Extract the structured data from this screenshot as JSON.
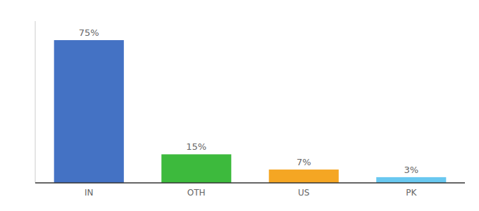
{
  "chart_data": {
    "type": "bar",
    "categories": [
      "IN",
      "OTH",
      "US",
      "PK"
    ],
    "values": [
      75,
      15,
      7,
      3
    ],
    "value_labels": [
      "75%",
      "15%",
      "7%",
      "3%"
    ],
    "colors": [
      "#4472c4",
      "#3dba3d",
      "#f5a623",
      "#69c8f0"
    ],
    "ylim": [
      0,
      85
    ],
    "data_labels": true,
    "tick_labels": "x",
    "grid": false
  }
}
